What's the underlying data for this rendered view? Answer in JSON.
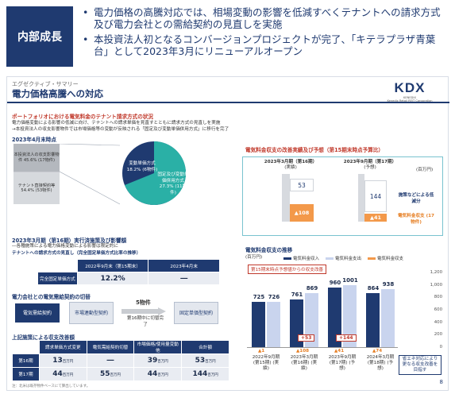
{
  "header": {
    "badge": "内部成長",
    "bullets": [
      "電力価格の高騰対応では、相場変動の影響を低減すべくテナントへの請求方式及び電力会社との需給契約の見直しを実施",
      "本投資法人初となるコンバージョンプロジェクトが完了、「キテラプラザ青葉台」として2023年3月にリニューアルオープン"
    ]
  },
  "slide": {
    "subtitle": "エグゼクティブ・サマリー",
    "title": "電力価格高騰への対応",
    "logo": "KDX",
    "logo_sub": "KENEDIX",
    "logo_company": "Kenedix Retail REIT Corporation",
    "page": "8",
    "section1": {
      "heading": "ポートフォリオにおける電気料金のテナント請求方式の状況",
      "desc1": "電力価格変動による影響の低減に向け、テナントへの請求単価を見直すとともに請求方式の見直しを実施",
      "desc2": "→本投資法人の収支影響物件では市場価格等の変動が反映される「固定及び変動単価併用方式」に移行を完了",
      "as_of": "2023年4月末時点",
      "bar_top": "本投資法人の収支影響物件 45.6% (17物件)",
      "bar_bottom": "テナント直接契約等 54.4% (53物件)",
      "pie_var": "変動単価方式 18.2% (6物件)",
      "pie_fix": "固定及び変動単価併用方式 27.3% (11物件)"
    },
    "section2": {
      "heading": "電気料金収支の改善実績及び予想（第15期末時点予算比）",
      "col1": "2023年3月期（第16期）",
      "col1_sub": "(実績)",
      "col2": "2023年9月期（第17期）",
      "col2_sub": "(予想)",
      "unit": "(百万円)",
      "val1": "53",
      "val2": "144",
      "neg1": "▲108",
      "neg2": "▲41",
      "label_up": "施策などによる低減分",
      "label_down": "電気料金収支 (17物件)"
    },
    "section3": {
      "heading": "2023年3月期（第16期）実行済施策及び影響額",
      "desc": "―各種施策による電力価格変動による影響は限定的に",
      "table_title": "テナントへの請求方式の見直し（完全固定単価方式比率の推移）",
      "col_a": "2022年9月末（第15期末）",
      "col_b": "2023年4月末",
      "row_label": "完全固定単価方式",
      "val_a": "12.2",
      "val_a_unit": "%",
      "val_b": "―",
      "contract_heading": "電力会社との電気需給契約の切替",
      "pill1": "電気需給契約",
      "pill2": "市場連動型契約",
      "arrow_top": "5物件",
      "arrow_bottom": "第16期中に切替完了",
      "pill3": "固定単価型契約",
      "summary_heading": "上記施策による収支改善額",
      "sum_cols": [
        "請求単価方式変更",
        "電気需給契約切替",
        "市場価格/使用量変動他",
        "合計額"
      ],
      "rows": [
        {
          "label": "第16期",
          "v": [
            "13",
            "―",
            "39",
            "53"
          ]
        },
        {
          "label": "第17期",
          "v": [
            "44",
            "55",
            "44",
            "144"
          ]
        }
      ],
      "unit_small": "百万円",
      "footnote": "注：北米は既存物件ベースにて算出しています。"
    },
    "section4": {
      "heading": "電気料金収支の推移",
      "unit": "(百万円)",
      "legend": [
        "電気料金収入",
        "電気料金支出",
        "電気料金収支"
      ],
      "note": "第15期末時点予想値からの収支改善",
      "callout": "省エネ対応により更なる収支改善を目指す"
    }
  },
  "chart_data": {
    "type": "bar",
    "title": "電気料金収支の推移",
    "ylabel": "(百万円)",
    "ylim": [
      0,
      1200
    ],
    "categories": [
      "2022年9月期 (第15期) (実績)",
      "2023年3月期 (第16期) (実績)",
      "2023年9月期 (第17期) (予想)",
      "2024年3月期 (第18期) (予想)"
    ],
    "series": [
      {
        "name": "電気料金収入",
        "values": [
          725,
          761,
          960,
          864
        ]
      },
      {
        "name": "電気料金支出",
        "values": [
          726,
          869,
          1001,
          938
        ]
      },
      {
        "name": "電気料金収支",
        "values": [
          "▲1",
          "▲108",
          "▲41",
          "▲74"
        ]
      }
    ],
    "improvements": [
      "+53",
      "+144"
    ],
    "yticks": [
      "1,200",
      "1,000",
      "800",
      "600",
      "400",
      "200",
      "0"
    ],
    "colors": {
      "income": "#1f3a70",
      "expense": "#c9d4ee",
      "balance": "#f3994a"
    },
    "legend_position": "top"
  }
}
